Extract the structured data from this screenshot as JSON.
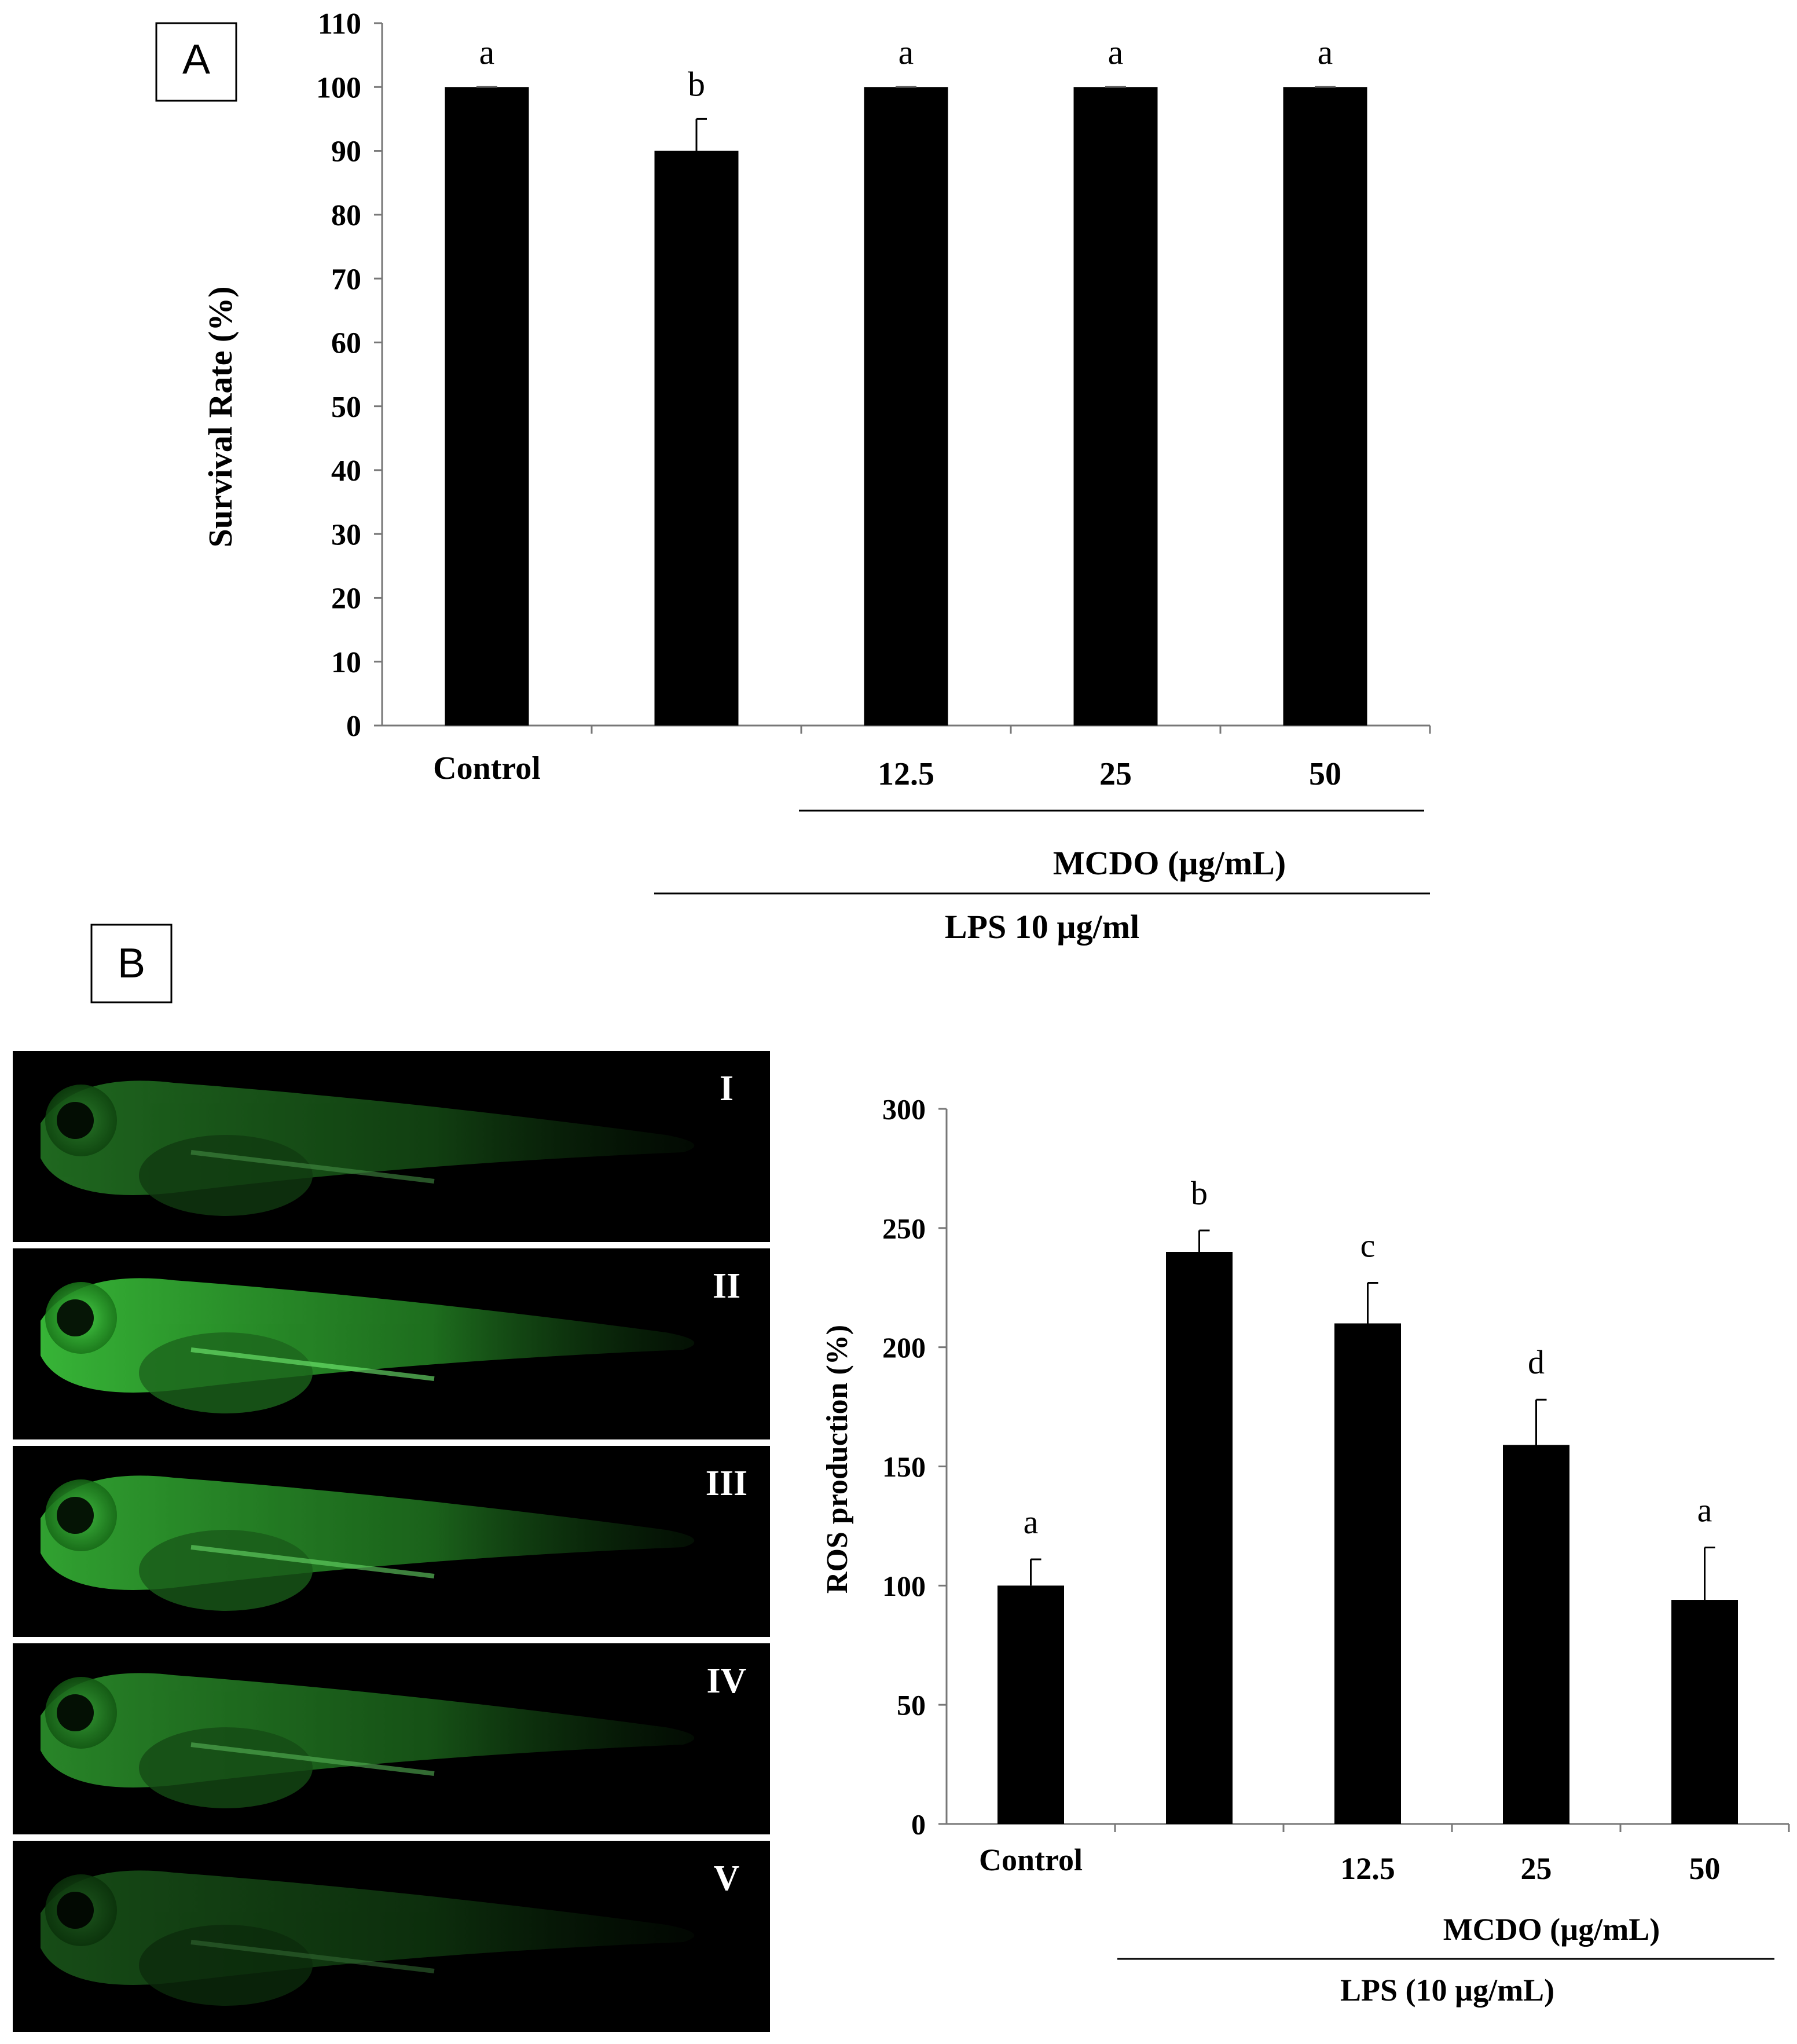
{
  "panel_a": {
    "panel_label": "A",
    "chart_data": {
      "type": "bar",
      "categories": [
        "Control",
        "",
        "12.5",
        "25",
        "50"
      ],
      "values": [
        100,
        90,
        100,
        100,
        100
      ],
      "errors": [
        0,
        5,
        0,
        0,
        0
      ],
      "significance_letters": [
        "a",
        "b",
        "a",
        "a",
        "a"
      ],
      "ylabel": "Survival Rate (%)",
      "xlabel": "",
      "ylim": [
        0,
        110
      ],
      "yticks": [
        0,
        10,
        20,
        30,
        40,
        50,
        60,
        70,
        80,
        90,
        100,
        110
      ],
      "group_label_inner": "MCDO (µg/mL)",
      "group_label_outer": "LPS 10 µg/ml",
      "bar_color": "#000000",
      "grid": false
    }
  },
  "panel_b": {
    "panel_label": "B",
    "image_labels": [
      "I",
      "II",
      "III",
      "IV",
      "V"
    ],
    "fluorescence_color": "#3fd43f",
    "chart_data": {
      "type": "bar",
      "categories": [
        "Control",
        "",
        "12.5",
        "25",
        "50"
      ],
      "values": [
        100,
        240,
        210,
        159,
        94
      ],
      "errors": [
        11,
        9,
        17,
        19,
        22
      ],
      "significance_letters": [
        "a",
        "b",
        "c",
        "d",
        "a"
      ],
      "ylabel": "ROS production (%)",
      "xlabel": "",
      "ylim": [
        0,
        300
      ],
      "yticks": [
        0,
        50,
        100,
        150,
        200,
        250,
        300
      ],
      "group_label_inner": "MCDO (µg/mL)",
      "group_label_outer": "LPS (10 µg/mL)",
      "bar_color": "#000000",
      "grid": false
    }
  }
}
